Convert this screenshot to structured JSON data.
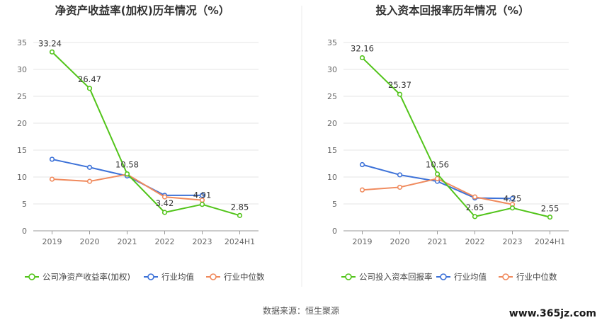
{
  "source_text": "数据来源：恒生聚源",
  "watermark": "www.365jz.com",
  "chart_data": [
    {
      "type": "line",
      "title": "净资产收益率(加权)历年情况（%）",
      "categories": [
        "2019",
        "2020",
        "2021",
        "2022",
        "2023",
        "2024H1"
      ],
      "yticks": [
        "0",
        "5",
        "10",
        "15",
        "20",
        "25",
        "30",
        "35"
      ],
      "ylim": [
        0,
        35
      ],
      "grid": true,
      "legend_position": "bottom-left",
      "series": [
        {
          "name": "公司净资产收益率(加权)",
          "color": "#52c41a",
          "values": [
            33.24,
            26.47,
            10.58,
            3.42,
            4.91,
            2.85
          ],
          "labels": [
            "33.24",
            "26.47",
            "10.58",
            "3.42",
            "4.91",
            "2.85"
          ]
        },
        {
          "name": "行业均值",
          "color": "#3d72d8",
          "values": [
            13.3,
            11.8,
            10.2,
            6.6,
            6.6,
            null
          ]
        },
        {
          "name": "行业中位数",
          "color": "#f08a5d",
          "values": [
            9.6,
            9.2,
            10.5,
            6.3,
            5.7,
            null
          ]
        }
      ]
    },
    {
      "type": "line",
      "title": "投入资本回报率历年情况（%）",
      "categories": [
        "2019",
        "2020",
        "2021",
        "2022",
        "2023",
        "2024H1"
      ],
      "yticks": [
        "0",
        "5",
        "10",
        "15",
        "20",
        "25",
        "30",
        "35"
      ],
      "ylim": [
        0,
        35
      ],
      "grid": true,
      "legend_position": "bottom-left",
      "series": [
        {
          "name": "公司投入资本回报率",
          "color": "#52c41a",
          "values": [
            32.16,
            25.37,
            10.56,
            2.65,
            4.25,
            2.55
          ],
          "labels": [
            "32.16",
            "25.37",
            "10.56",
            "2.65",
            "4.25",
            "2.55"
          ]
        },
        {
          "name": "行业均值",
          "color": "#3d72d8",
          "values": [
            12.3,
            10.4,
            9.2,
            6.1,
            6.0,
            null
          ]
        },
        {
          "name": "行业中位数",
          "color": "#f08a5d",
          "values": [
            7.6,
            8.1,
            9.7,
            6.3,
            4.9,
            null
          ]
        }
      ]
    }
  ]
}
